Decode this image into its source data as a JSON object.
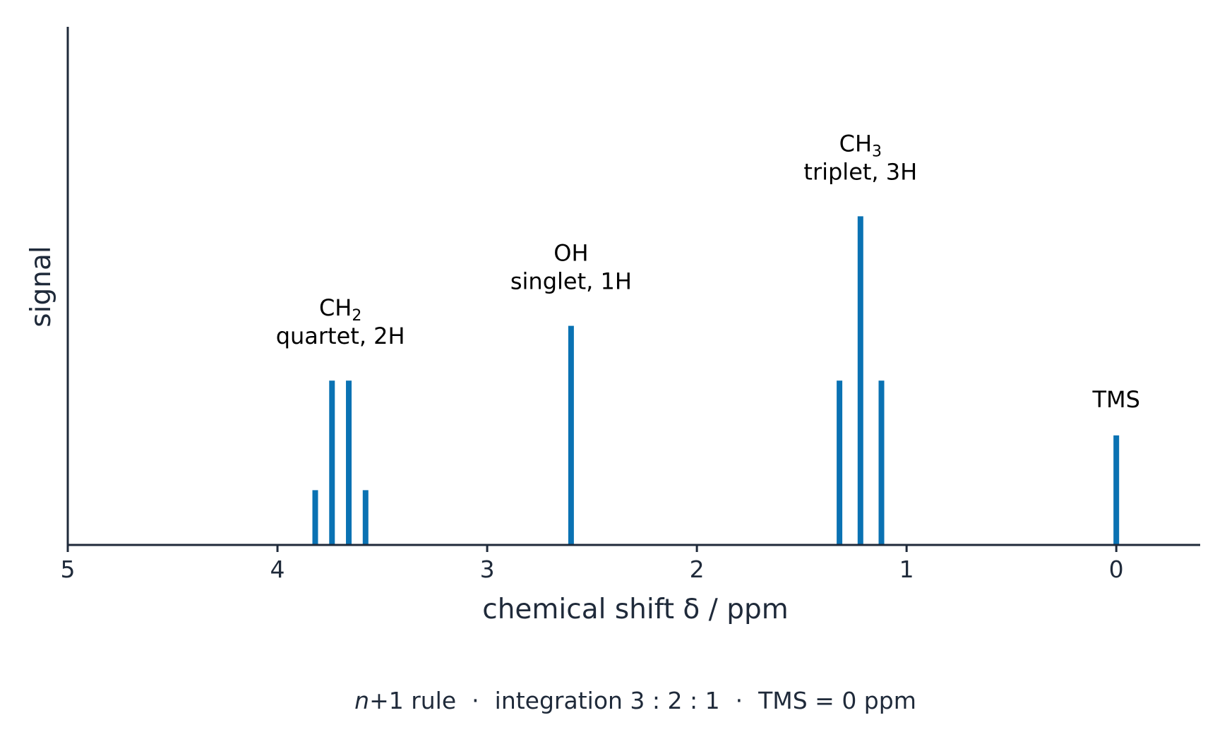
{
  "chart_data": {
    "type": "bar",
    "xlabel": "chemical shift δ / ppm",
    "ylabel": "signal",
    "xlim": [
      5,
      -0.4
    ],
    "ylim": [
      0,
      6
    ],
    "x_ticks": [
      5,
      4,
      3,
      2,
      1,
      0
    ],
    "x_tick_labels": [
      "5",
      "4",
      "3",
      "2",
      "1",
      "0"
    ],
    "grid": false,
    "bar_color": "#0a72b3",
    "axis_color": "#1f2a3a",
    "peaks": [
      {
        "x": 3.82,
        "y": 1
      },
      {
        "x": 3.74,
        "y": 3
      },
      {
        "x": 3.66,
        "y": 3
      },
      {
        "x": 3.58,
        "y": 1
      },
      {
        "x": 2.6,
        "y": 4
      },
      {
        "x": 1.32,
        "y": 3
      },
      {
        "x": 1.22,
        "y": 6
      },
      {
        "x": 1.12,
        "y": 3
      },
      {
        "x": 0.0,
        "y": 2
      }
    ],
    "annotations": [
      {
        "group": "CH",
        "sub": "2",
        "detail": "quartet, 2H",
        "x": 3.7,
        "y": 3
      },
      {
        "group": "OH",
        "sub": "",
        "detail": "singlet, 1H",
        "x": 2.6,
        "y": 4
      },
      {
        "group": "CH",
        "sub": "3",
        "detail": "triplet, 3H",
        "x": 1.22,
        "y": 6
      },
      {
        "group": "TMS",
        "sub": "",
        "detail": "",
        "x": 0.0,
        "y": 2
      }
    ]
  },
  "footer": {
    "n": "n",
    "rule": "+1 rule",
    "sep1": "·",
    "integration": "integration 3 : 2 : 1",
    "sep2": "·",
    "tms": "TMS = 0 ppm"
  }
}
